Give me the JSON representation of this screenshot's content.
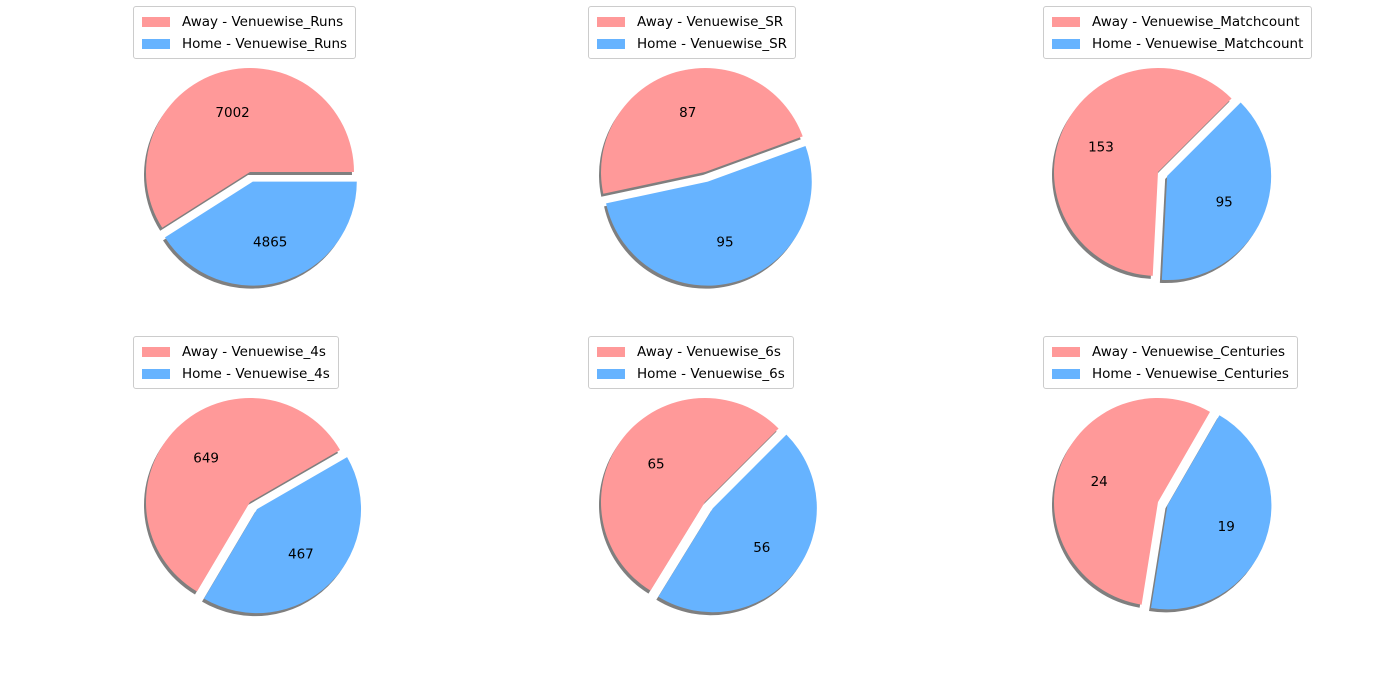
{
  "colors": {
    "away": "#ff9999",
    "home": "#66b3ff",
    "shadow": "#7f7f7f"
  },
  "chart_data": [
    {
      "type": "pie",
      "series": [
        {
          "name": "Away - Venuewise_Runs",
          "value": 7002
        },
        {
          "name": "Home - Venuewise_Runs",
          "value": 4865
        }
      ],
      "legend": "top-left"
    },
    {
      "type": "pie",
      "series": [
        {
          "name": "Away - Venuewise_SR",
          "value": 87
        },
        {
          "name": "Home - Venuewise_SR",
          "value": 95
        }
      ],
      "legend": "top-left"
    },
    {
      "type": "pie",
      "series": [
        {
          "name": "Away - Venuewise_Matchcount",
          "value": 153
        },
        {
          "name": "Home - Venuewise_Matchcount",
          "value": 95
        }
      ],
      "legend": "top-left"
    },
    {
      "type": "pie",
      "series": [
        {
          "name": "Away - Venuewise_4s",
          "value": 649
        },
        {
          "name": "Home - Venuewise_4s",
          "value": 467
        }
      ],
      "legend": "top-left"
    },
    {
      "type": "pie",
      "series": [
        {
          "name": "Away - Venuewise_6s",
          "value": 65
        },
        {
          "name": "Home - Venuewise_6s",
          "value": 56
        }
      ],
      "legend": "top-left"
    },
    {
      "type": "pie",
      "series": [
        {
          "name": "Away - Venuewise_Centuries",
          "value": 24
        },
        {
          "name": "Home - Venuewise_Centuries",
          "value": 19
        }
      ],
      "legend": "top-left"
    }
  ]
}
